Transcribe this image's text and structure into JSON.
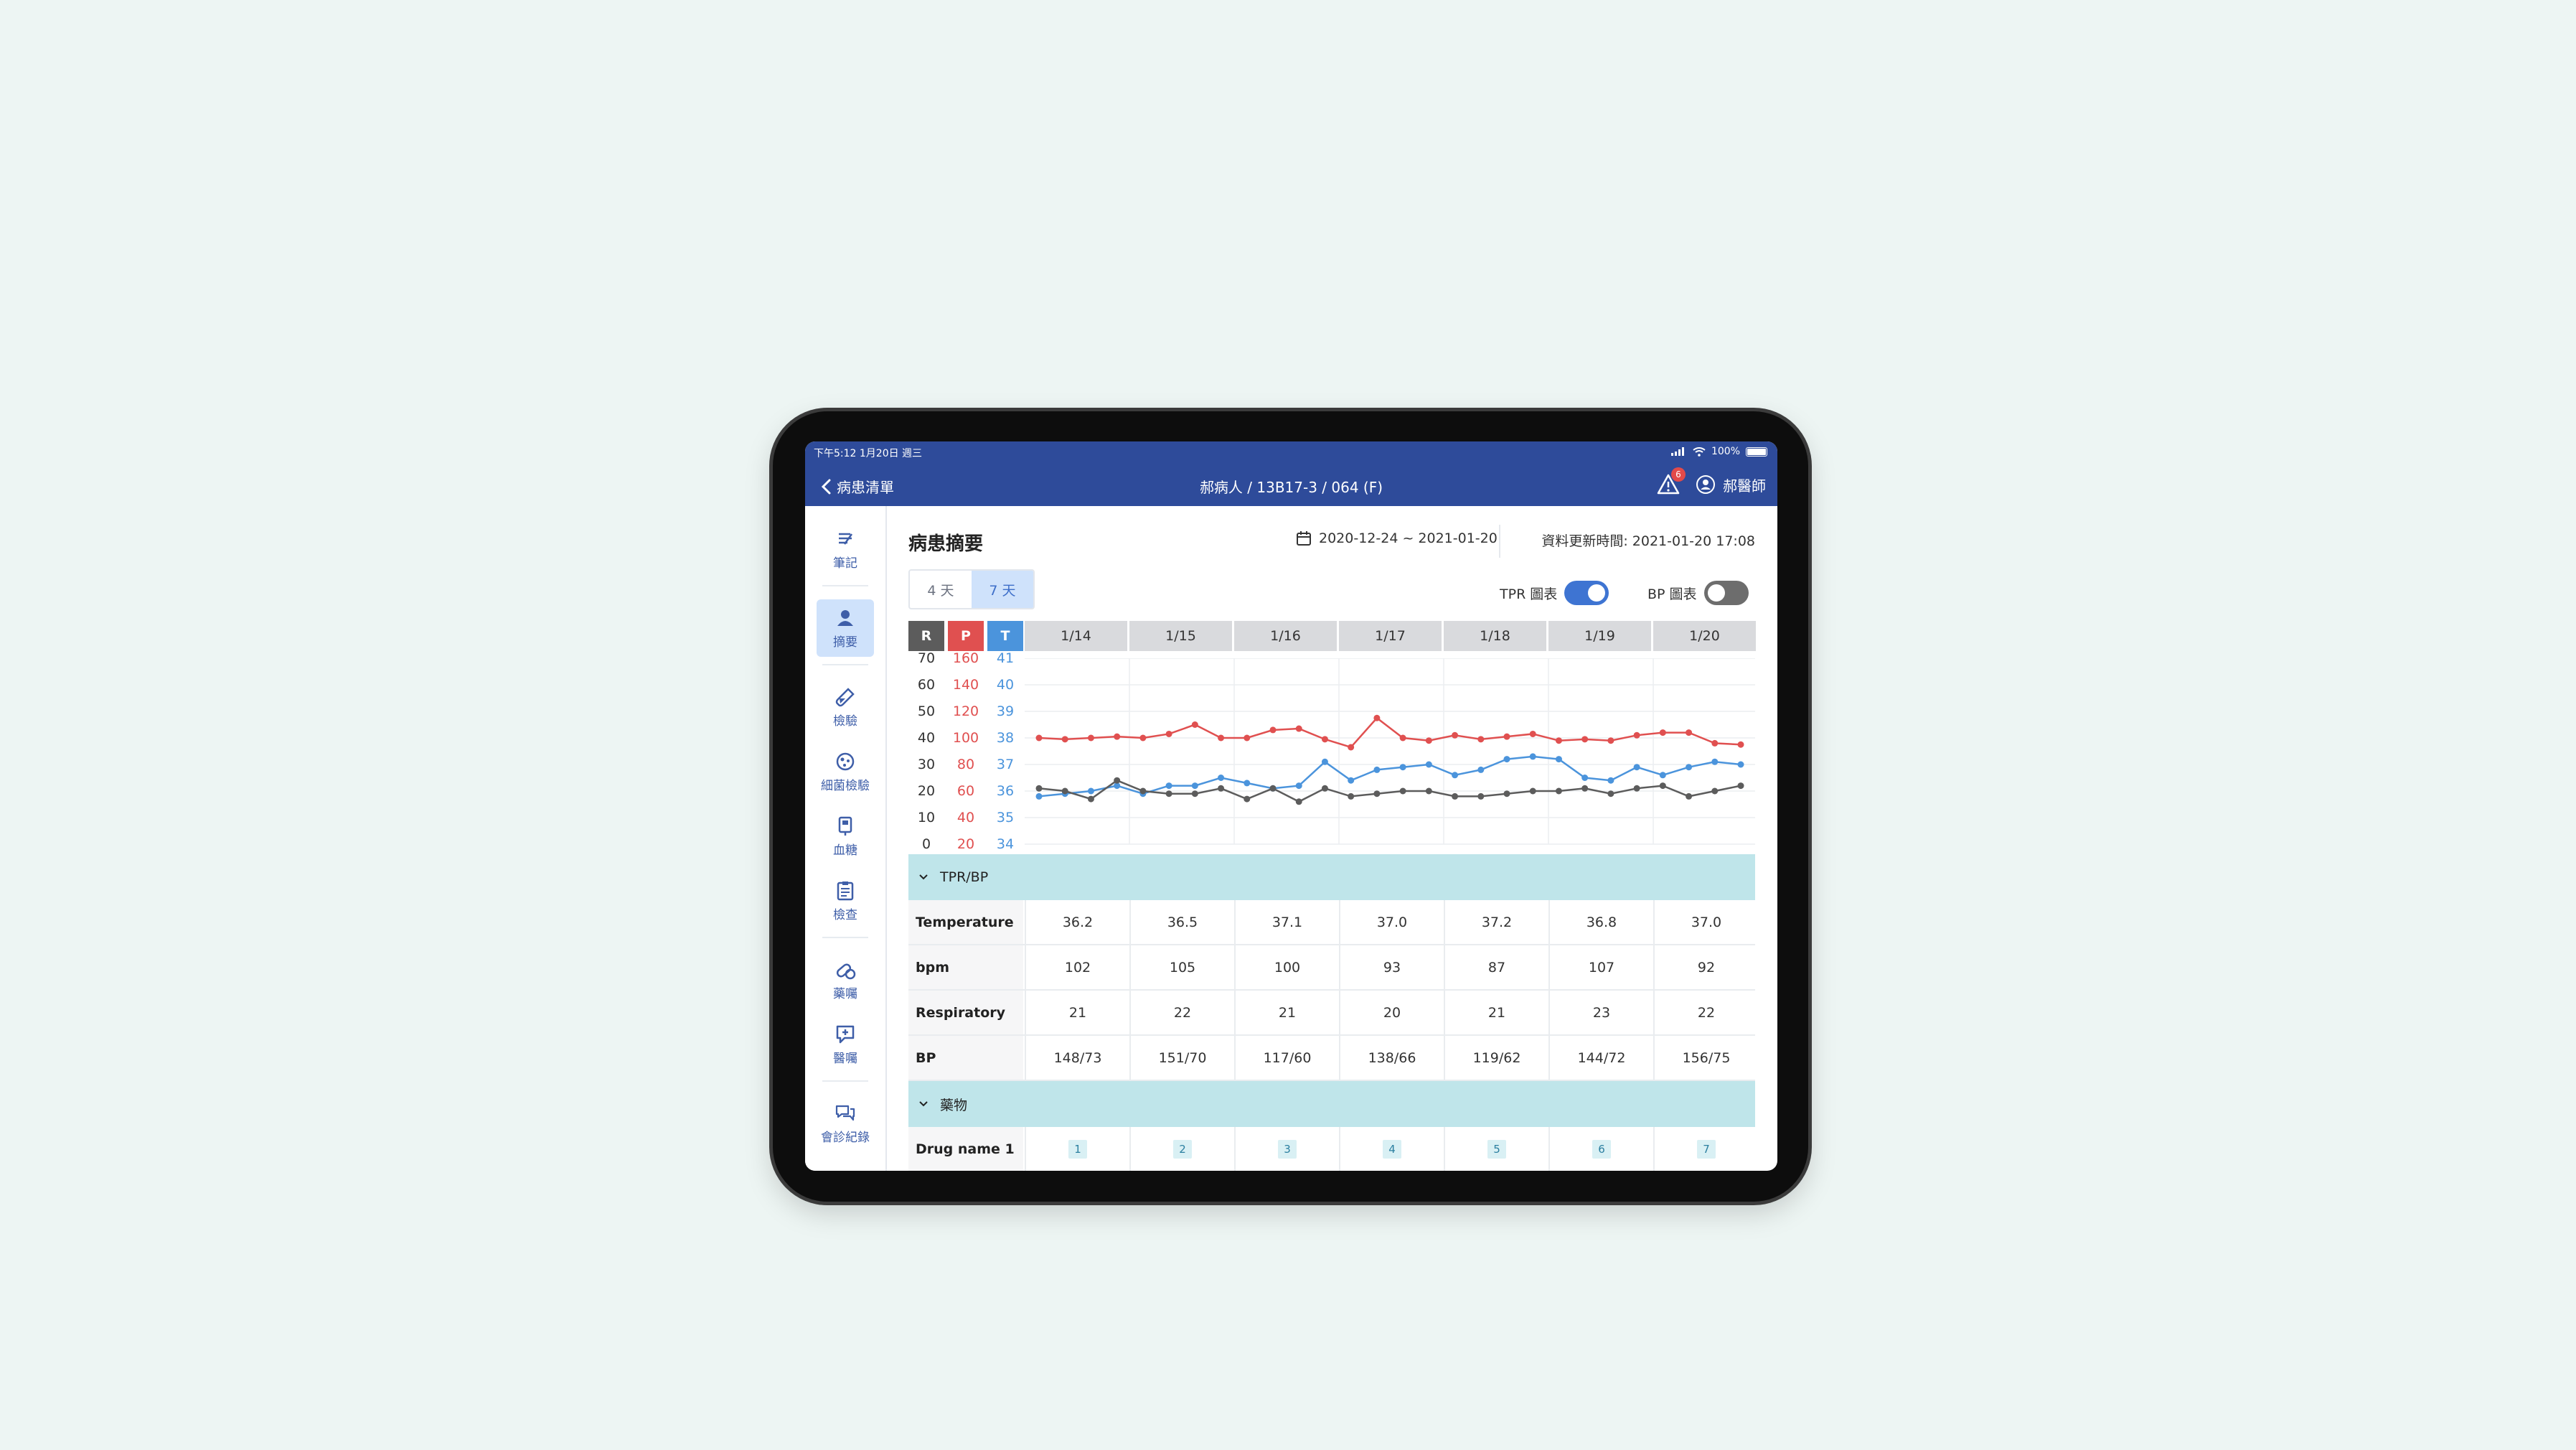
{
  "status_bar": {
    "time_date": "下午5:12  1月20日 週三",
    "battery": "100%"
  },
  "nav": {
    "back_label": "病患清單",
    "title": "郝病人 / 13B17-3 / 064 (F)",
    "alert_count": "6",
    "user_name": "郝醫師"
  },
  "sidebar": {
    "items": [
      {
        "label": "筆記",
        "icon": "note-icon"
      },
      {
        "label": "摘要",
        "icon": "person-icon",
        "active": true
      },
      {
        "label": "檢驗",
        "icon": "test-tube-icon"
      },
      {
        "label": "細菌檢驗",
        "icon": "bacteria-icon"
      },
      {
        "label": "血糖",
        "icon": "glucose-icon"
      },
      {
        "label": "檢查",
        "icon": "clipboard-icon"
      },
      {
        "label": "藥囑",
        "icon": "pill-icon"
      },
      {
        "label": "醫囑",
        "icon": "order-icon"
      },
      {
        "label": "會診紀錄",
        "icon": "chat-icon"
      }
    ]
  },
  "main": {
    "title": "病患摘要",
    "date_range": "2020-12-24 ~ 2021-01-20",
    "updated": "資料更新時間: 2021-01-20 17:08",
    "range_options": [
      "4 天",
      "7 天"
    ],
    "range_selected": "7 天",
    "tpr_toggle": {
      "label": "TPR 圖表",
      "on": true
    },
    "bp_toggle": {
      "label": "BP 圖表",
      "on": false
    }
  },
  "colors": {
    "R": "#5c5c5c",
    "P": "#e05050",
    "T": "#4b94dc",
    "header": "#2e4b9a",
    "section": "#bfe5ea"
  },
  "chart_data": {
    "type": "line",
    "x_labels": [
      "1/14",
      "1/15",
      "1/16",
      "1/17",
      "1/18",
      "1/19",
      "1/20"
    ],
    "axes": {
      "R": {
        "label": "R",
        "ticks": [
          70,
          60,
          50,
          40,
          30,
          20,
          10,
          0
        ],
        "range": [
          0,
          70
        ]
      },
      "P": {
        "label": "P",
        "ticks": [
          160,
          140,
          120,
          100,
          80,
          60,
          40,
          20
        ],
        "range": [
          20,
          160
        ]
      },
      "T": {
        "label": "T",
        "ticks": [
          41,
          40,
          39,
          38,
          37,
          36,
          35,
          34
        ],
        "range": [
          34,
          41
        ]
      }
    },
    "grid": true,
    "series": [
      {
        "name": "P",
        "axis": "P",
        "values": [
          100,
          99,
          100,
          101,
          100,
          103,
          110,
          100,
          100,
          106,
          107,
          99,
          93,
          115,
          100,
          98,
          102,
          99,
          101,
          103,
          98,
          99,
          98,
          102,
          104,
          104,
          96,
          95
        ]
      },
      {
        "name": "T",
        "axis": "T",
        "values": [
          35.8,
          35.9,
          36.0,
          36.2,
          35.9,
          36.2,
          36.2,
          36.5,
          36.3,
          36.1,
          36.2,
          37.1,
          36.4,
          36.8,
          36.9,
          37.0,
          36.6,
          36.8,
          37.2,
          37.3,
          37.2,
          36.5,
          36.4,
          36.9,
          36.6,
          36.9,
          37.1,
          37.0
        ]
      },
      {
        "name": "R",
        "axis": "R",
        "values": [
          21,
          20,
          17,
          24,
          20,
          19,
          19,
          21,
          17,
          21,
          16,
          21,
          18,
          19,
          20,
          20,
          18,
          18,
          19,
          20,
          20,
          21,
          19,
          21,
          22,
          18,
          20,
          22
        ]
      }
    ]
  },
  "tpr_section": {
    "title": "TPR/BP",
    "rows": [
      {
        "label": "Temperature",
        "values": [
          "36.2",
          "36.5",
          "37.1",
          "37.0",
          "37.2",
          "36.8",
          "37.0"
        ]
      },
      {
        "label": "bpm",
        "values": [
          "102",
          "105",
          "100",
          "93",
          "87",
          "107",
          "92"
        ]
      },
      {
        "label": "Respiratory",
        "values": [
          "21",
          "22",
          "21",
          "20",
          "21",
          "23",
          "22"
        ]
      },
      {
        "label": "BP",
        "values": [
          "148/73",
          "151/70",
          "117/60",
          "138/66",
          "119/62",
          "144/72",
          "156/75"
        ]
      }
    ]
  },
  "drug_section": {
    "title": "藥物",
    "rows": [
      {
        "label": "Drug name 1",
        "values": [
          "1",
          "2",
          "3",
          "4",
          "5",
          "6",
          "7"
        ]
      }
    ]
  }
}
